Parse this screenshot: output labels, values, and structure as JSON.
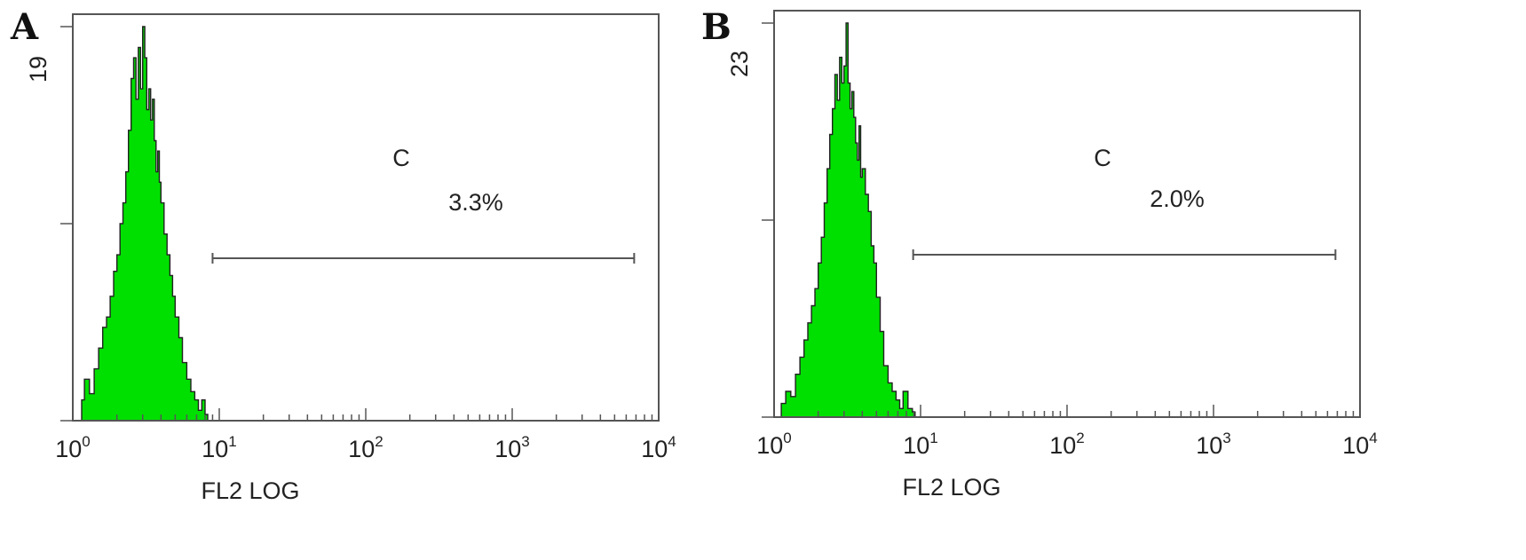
{
  "chart_data": [
    {
      "type": "histogram",
      "panel": "A",
      "xlabel": "FL2 LOG",
      "x_scale": "log",
      "xlim": [
        1,
        10000
      ],
      "x_ticks": [
        {
          "base": "10",
          "exp": "0"
        },
        {
          "base": "10",
          "exp": "1"
        },
        {
          "base": "10",
          "exp": "2"
        },
        {
          "base": "10",
          "exp": "3"
        },
        {
          "base": "10",
          "exp": "4"
        }
      ],
      "ymax_label": "19",
      "ylim": [
        0,
        19
      ],
      "gate": {
        "label": "C",
        "percent": "3.3%",
        "x_start": 9.0,
        "x_end": 6800
      },
      "color": "#00e000",
      "histogram": {
        "x": [
          1.15,
          1.2,
          1.3,
          1.4,
          1.5,
          1.6,
          1.7,
          1.8,
          1.9,
          2.0,
          2.1,
          2.2,
          2.3,
          2.4,
          2.5,
          2.6,
          2.7,
          2.8,
          2.9,
          3.0,
          3.1,
          3.2,
          3.3,
          3.4,
          3.5,
          3.6,
          3.7,
          3.8,
          3.9,
          4.0,
          4.2,
          4.4,
          4.6,
          4.8,
          5.0,
          5.3,
          5.6,
          6.0,
          6.4,
          6.8,
          7.2,
          7.6,
          8.0
        ],
        "y": [
          1.0,
          2.0,
          1.3,
          2.5,
          3.5,
          4.5,
          5.0,
          6.0,
          7.2,
          8.0,
          9.5,
          10.5,
          12.0,
          14.0,
          16.5,
          17.5,
          15.5,
          18.0,
          16.0,
          19.0,
          17.5,
          15.0,
          16.0,
          14.5,
          15.5,
          13.5,
          12.0,
          13.0,
          11.5,
          10.5,
          9.0,
          8.0,
          7.0,
          6.0,
          5.0,
          4.0,
          2.8,
          2.0,
          1.4,
          1.0,
          0.5,
          1.0,
          0.3
        ]
      }
    },
    {
      "type": "histogram",
      "panel": "B",
      "xlabel": "FL2 LOG",
      "x_scale": "log",
      "xlim": [
        1,
        10000
      ],
      "x_ticks": [
        {
          "base": "10",
          "exp": "0"
        },
        {
          "base": "10",
          "exp": "1"
        },
        {
          "base": "10",
          "exp": "2"
        },
        {
          "base": "10",
          "exp": "3"
        },
        {
          "base": "10",
          "exp": "4"
        }
      ],
      "ymax_label": "23",
      "ylim": [
        0,
        23
      ],
      "gate": {
        "label": "C",
        "percent": "2.0%",
        "x_start": 8.9,
        "x_end": 6800
      },
      "color": "#00e000",
      "histogram": {
        "x": [
          1.12,
          1.2,
          1.3,
          1.4,
          1.5,
          1.6,
          1.7,
          1.8,
          1.9,
          2.0,
          2.1,
          2.2,
          2.3,
          2.4,
          2.5,
          2.6,
          2.7,
          2.8,
          2.9,
          3.0,
          3.1,
          3.2,
          3.3,
          3.4,
          3.5,
          3.6,
          3.7,
          3.8,
          3.9,
          4.0,
          4.2,
          4.4,
          4.6,
          4.8,
          5.0,
          5.3,
          5.6,
          6.0,
          6.4,
          6.8,
          7.2,
          7.6,
          8.2,
          8.8
        ],
        "y": [
          0.8,
          1.5,
          1.2,
          2.5,
          3.5,
          4.5,
          5.5,
          6.5,
          7.5,
          9.0,
          10.5,
          12.5,
          14.5,
          16.5,
          18.0,
          20.0,
          18.5,
          21.0,
          19.5,
          20.5,
          23.0,
          19.5,
          18.0,
          19.0,
          17.5,
          16.0,
          15.0,
          17.0,
          14.0,
          14.5,
          13.0,
          12.0,
          10.0,
          9.0,
          7.0,
          5.0,
          3.0,
          2.0,
          1.5,
          1.0,
          0.5,
          1.5,
          0.5,
          0.3
        ]
      }
    }
  ]
}
